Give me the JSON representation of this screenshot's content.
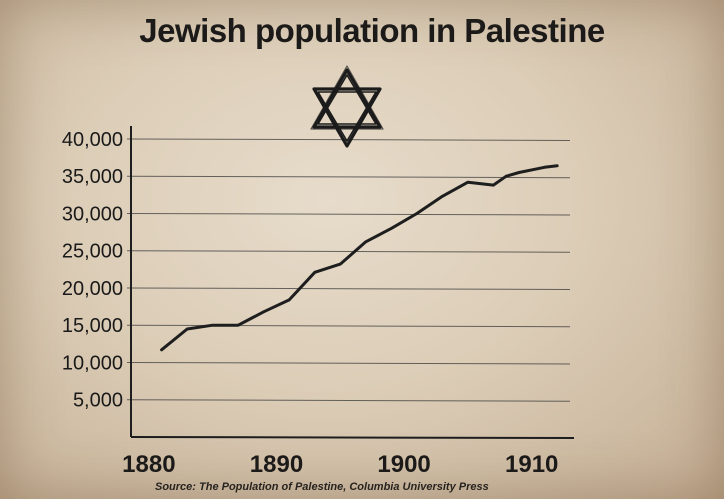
{
  "chart_data": {
    "type": "line",
    "title": "Jewish population in Palestine",
    "source": "Source: The Population of Palestine, Columbia University Press",
    "x": [
      1881,
      1883,
      1885,
      1887,
      1889,
      1891,
      1893,
      1895,
      1897,
      1899,
      1901,
      1903,
      1905,
      1907,
      1908,
      1909,
      1911,
      1912
    ],
    "values": [
      11700,
      14500,
      15000,
      15000,
      16800,
      18400,
      22100,
      23200,
      26200,
      28000,
      30000,
      32300,
      34200,
      33800,
      35000,
      35500,
      36200,
      36400
    ],
    "xlim": [
      1878.6,
      1913
    ],
    "ylim": [
      0,
      41200
    ],
    "x_ticks": [
      1880,
      1890,
      1900,
      1910
    ],
    "x_tick_labels": [
      "1880",
      "1890",
      "1900",
      "1910"
    ],
    "y_ticks": [
      5000,
      10000,
      15000,
      20000,
      25000,
      30000,
      35000,
      40000
    ],
    "y_tick_labels": [
      "5,000",
      "10,000",
      "15,000",
      "20,000",
      "25,000",
      "30,000",
      "35,000",
      "40,000"
    ],
    "grid": true,
    "colors": {
      "line": "#1e1e1e",
      "grid": "#3a3a3a",
      "text": "#1a1a1a"
    },
    "decoration": "star-of-david-icon"
  }
}
